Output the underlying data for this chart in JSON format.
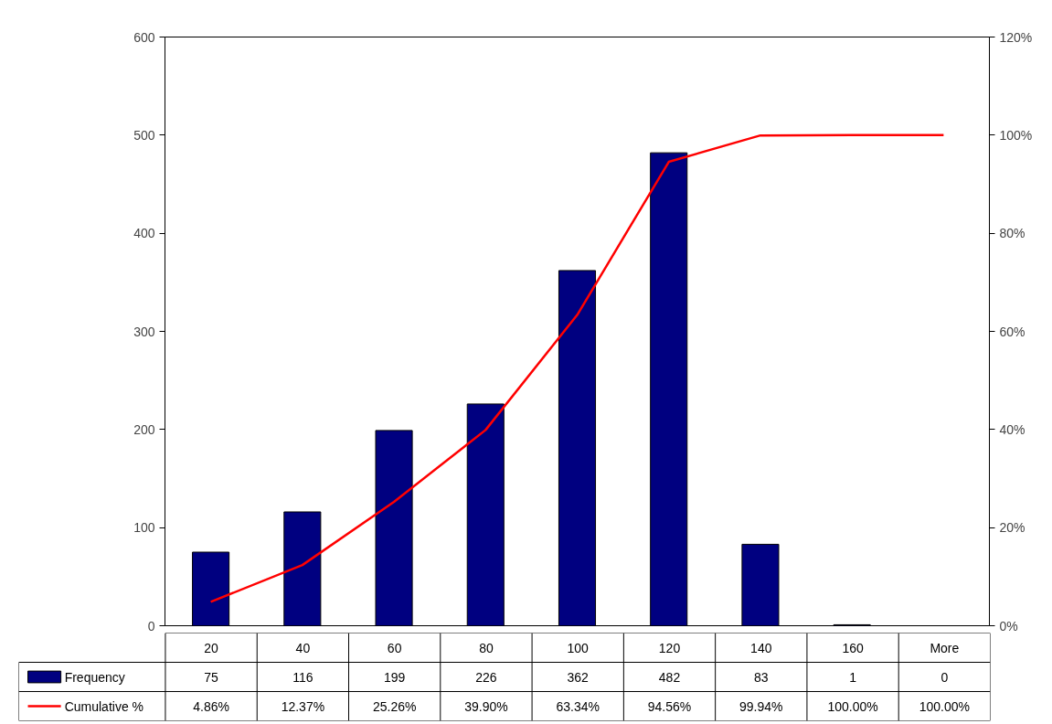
{
  "chart_data": {
    "type": "bar",
    "categories": [
      "20",
      "40",
      "60",
      "80",
      "100",
      "120",
      "140",
      "160",
      "More"
    ],
    "series": [
      {
        "name": "Frequency",
        "color": "#000080",
        "values": [
          75,
          116,
          199,
          226,
          362,
          482,
          83,
          1,
          0
        ],
        "value_labels": [
          "75",
          "116",
          "199",
          "226",
          "362",
          "482",
          "83",
          "1",
          "0"
        ]
      },
      {
        "name": "Cumulative %",
        "type": "line",
        "axis": "y2",
        "color": "#ff0000",
        "values": [
          4.86,
          12.37,
          25.26,
          39.9,
          63.34,
          94.56,
          99.94,
          100,
          100
        ],
        "value_labels": [
          "4.86%",
          "12.37%",
          "25.26%",
          "39.90%",
          "63.34%",
          "94.56%",
          "99.94%",
          "100.00%",
          "100.00%"
        ]
      }
    ],
    "ylim": [
      0,
      600
    ],
    "yticks": [
      0,
      100,
      200,
      300,
      400,
      500,
      600
    ],
    "y2lim": [
      0,
      120
    ],
    "y2ticks": [
      {
        "value": 0,
        "label": "0%"
      },
      {
        "value": 20,
        "label": "20%"
      },
      {
        "value": 40,
        "label": "40%"
      },
      {
        "value": 60,
        "label": "60%"
      },
      {
        "value": 80,
        "label": "80%"
      },
      {
        "value": 100,
        "label": "100%"
      },
      {
        "value": 120,
        "label": "120%"
      }
    ],
    "legend": "bottom",
    "grid": false
  }
}
